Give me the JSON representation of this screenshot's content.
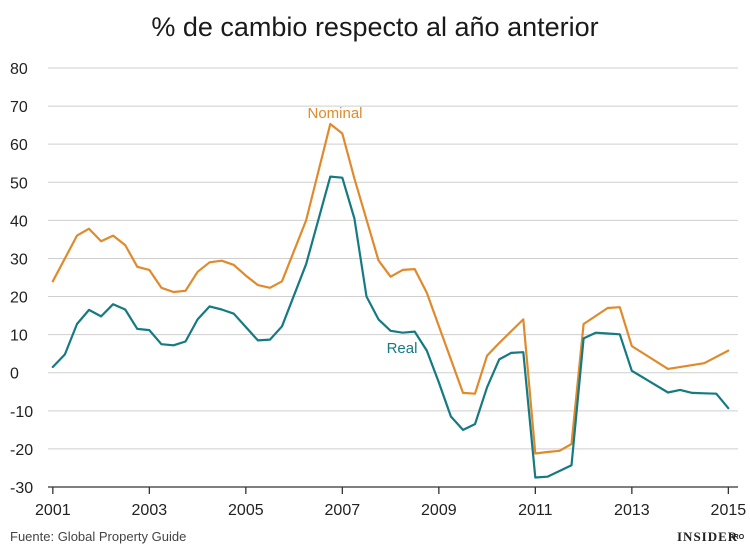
{
  "chart_data": {
    "type": "line",
    "title": "% de cambio respecto al año anterior",
    "xlabel": "",
    "ylabel": "",
    "xlim": [
      2000.9,
      2015.2
    ],
    "ylim": [
      -30,
      80
    ],
    "yticks": [
      80,
      70,
      60,
      50,
      40,
      30,
      20,
      10,
      0,
      -10,
      -20,
      -30
    ],
    "xticks": [
      2001,
      2003,
      2005,
      2007,
      2009,
      2011,
      2013,
      2015
    ],
    "grid": true,
    "series": [
      {
        "name": "Nominal",
        "color": "#e08a2c",
        "x": [
          2001.0,
          2001.5,
          2001.75,
          2002.0,
          2002.25,
          2002.5,
          2002.75,
          2003.0,
          2003.25,
          2003.5,
          2003.75,
          2004.0,
          2004.25,
          2004.5,
          2004.75,
          2005.0,
          2005.25,
          2005.5,
          2005.75,
          2006.25,
          2006.75,
          2007.0,
          2007.25,
          2007.75,
          2008.0,
          2008.25,
          2008.5,
          2008.75,
          2009.5,
          2009.75,
          2010.0,
          2010.25,
          2010.75,
          2011.0,
          2011.25,
          2011.5,
          2011.75,
          2012.0,
          2012.5,
          2012.75,
          2013.0,
          2013.75,
          2014.5,
          2015.0
        ],
        "values": [
          24,
          36,
          37.8,
          34.5,
          36,
          33.5,
          27.8,
          27,
          22.3,
          21.2,
          21.5,
          26.5,
          29,
          29.4,
          28.3,
          25.5,
          23,
          22.3,
          24,
          40,
          65.3,
          62.8,
          51,
          29.5,
          25.2,
          27,
          27.2,
          21,
          -5.3,
          -5.5,
          4.5,
          7.8,
          14,
          -21.2,
          -20.8,
          -20.5,
          -18.7,
          12.8,
          17,
          17.2,
          7,
          1,
          2.5,
          5.8
        ]
      },
      {
        "name": "Real",
        "color": "#157a82",
        "x": [
          2001.0,
          2001.25,
          2001.5,
          2001.75,
          2002.0,
          2002.25,
          2002.5,
          2002.75,
          2003.0,
          2003.25,
          2003.5,
          2003.75,
          2004.0,
          2004.25,
          2004.5,
          2004.75,
          2005.0,
          2005.25,
          2005.5,
          2005.75,
          2006.25,
          2006.75,
          2007.0,
          2007.25,
          2007.5,
          2007.75,
          2008.0,
          2008.25,
          2008.5,
          2008.75,
          2009.0,
          2009.25,
          2009.5,
          2009.75,
          2010.0,
          2010.25,
          2010.5,
          2010.75,
          2011.0,
          2011.25,
          2011.5,
          2011.75,
          2012.0,
          2012.25,
          2012.5,
          2012.75,
          2013.0,
          2013.75,
          2014.0,
          2014.25,
          2014.5,
          2014.75,
          2015.0
        ],
        "values": [
          1.5,
          4.8,
          12.8,
          16.5,
          14.8,
          18,
          16.6,
          11.5,
          11.2,
          7.5,
          7.2,
          8.2,
          14,
          17.4,
          16.6,
          15.5,
          12,
          8.5,
          8.7,
          12.2,
          28.5,
          51.5,
          51.2,
          40.5,
          20,
          14,
          11,
          10.5,
          10.8,
          5.8,
          -2.5,
          -11.5,
          -15,
          -13.5,
          -3.8,
          3.5,
          5.2,
          5.4,
          -27.5,
          -27.3,
          -25.8,
          -24.3,
          9,
          10.5,
          10.3,
          10.1,
          0.5,
          -5.2,
          -4.5,
          -5.3,
          -5.4,
          -5.5,
          -9.3
        ]
      }
    ]
  },
  "footer": {
    "source": "Fuente: Global Property Guide",
    "brand": "INSIDER",
    "brand_suffix": "PRO"
  }
}
